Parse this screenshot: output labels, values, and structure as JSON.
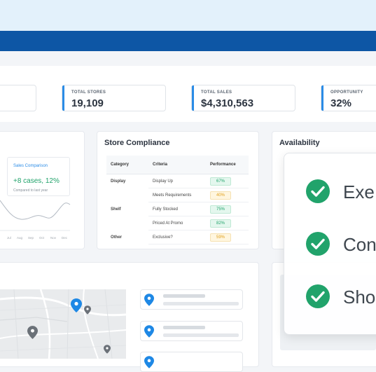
{
  "stats": [
    {
      "label": "TOTAL STORES",
      "value": "19,109"
    },
    {
      "label": "TOTAL SALES",
      "value": "$4,310,563"
    },
    {
      "label": "OPPORTUNITY",
      "value": "32%"
    }
  ],
  "sales": {
    "title": "Sales Comparison",
    "value": "+8 cases, 12%",
    "subtitle": "Compared to last year",
    "months": [
      "Jul",
      "Aug",
      "Sep",
      "Oct",
      "Nov",
      "Dec"
    ]
  },
  "compliance": {
    "title": "Store Compliance",
    "headers": [
      "Category",
      "Criteria",
      "Performance"
    ],
    "rows": [
      {
        "category": "Display",
        "criteria": "Display Up",
        "performance": "67%",
        "status": "good"
      },
      {
        "category": "",
        "criteria": "Meets Requirements",
        "performance": "40%",
        "status": "warn"
      },
      {
        "category": "Shelf",
        "criteria": "Fully Stocked",
        "performance": "75%",
        "status": "good"
      },
      {
        "category": "",
        "criteria": "Priced At Promo",
        "performance": "82%",
        "status": "good"
      },
      {
        "category": "Other",
        "criteria": "Exclusive?",
        "performance": "59%",
        "status": "warn"
      }
    ]
  },
  "availability": {
    "title": "Availability"
  },
  "checklist": [
    {
      "label": "Exe",
      "icon": "check-circle-icon"
    },
    {
      "label": "Con",
      "icon": "check-circle-icon"
    },
    {
      "label": "Sho",
      "icon": "check-circle-icon"
    }
  ],
  "colors": {
    "nav": "#0d56a5",
    "accent": "#2b8ce6",
    "success": "#21a36b",
    "warning": "#e0a01e"
  }
}
